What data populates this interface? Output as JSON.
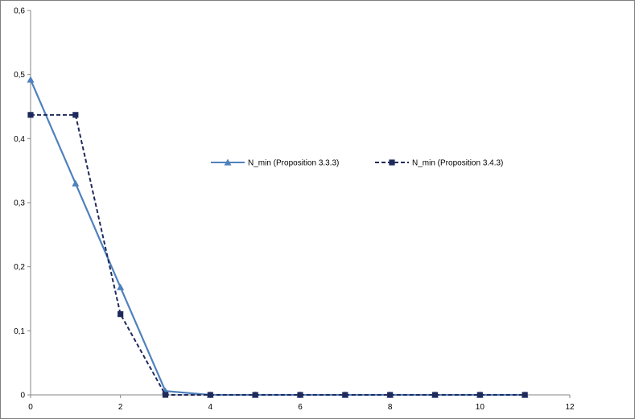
{
  "chart_data": {
    "type": "line",
    "title": "",
    "xlabel": "",
    "ylabel": "",
    "xlim": [
      0,
      12
    ],
    "ylim": [
      0,
      0.6
    ],
    "x_ticks": [
      "0",
      "2",
      "4",
      "6",
      "8",
      "10",
      "12"
    ],
    "y_ticks": [
      "0",
      "0,1",
      "0,2",
      "0,3",
      "0,4",
      "0,5",
      "0,6"
    ],
    "grid": false,
    "legend_position": "center-right",
    "series": [
      {
        "name": "N_min (Proposition 3.3.3)",
        "color": "#4f81bd",
        "marker": "triangle",
        "line_style": "solid",
        "x": [
          0,
          1,
          2,
          3,
          4,
          5,
          6,
          7,
          8,
          9,
          10,
          11
        ],
        "values": [
          0.492,
          0.33,
          0.168,
          0.006,
          0.0,
          0.0,
          0.0,
          0.0,
          0.0,
          0.0,
          0.0,
          0.0
        ]
      },
      {
        "name": "N_min (Proposition 3.4.3)",
        "color": "#1f2a5c",
        "marker": "square",
        "line_style": "dashed",
        "x": [
          0,
          1,
          2,
          3,
          4,
          5,
          6,
          7,
          8,
          9,
          10,
          11
        ],
        "values": [
          0.437,
          0.437,
          0.126,
          0.0,
          0.0,
          0.0,
          0.0,
          0.0,
          0.0,
          0.0,
          0.0,
          0.0
        ]
      }
    ]
  }
}
